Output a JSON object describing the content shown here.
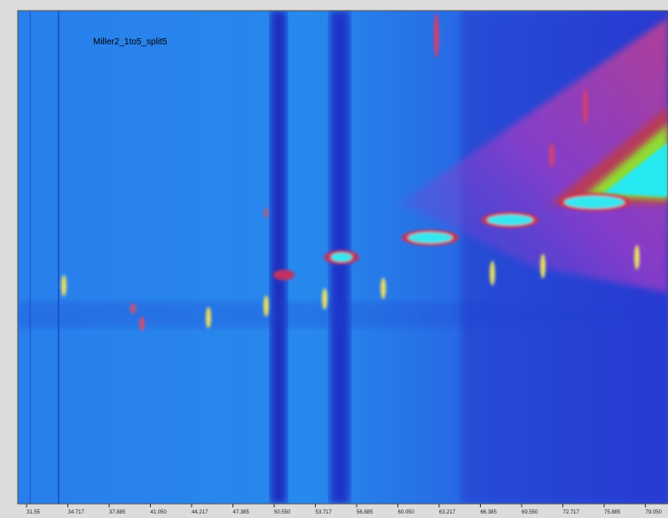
{
  "plot": {
    "label": "Miller2_1to5_split5",
    "x_tick_labels": [
      "31.55",
      "34.717",
      "37.885",
      "41.050",
      "44.217",
      "47.385",
      "50.550",
      "53.717",
      "56.885",
      "60.050",
      "63.217",
      "66.385",
      "69.550",
      "72.717",
      "75.885",
      "79.050"
    ]
  }
}
